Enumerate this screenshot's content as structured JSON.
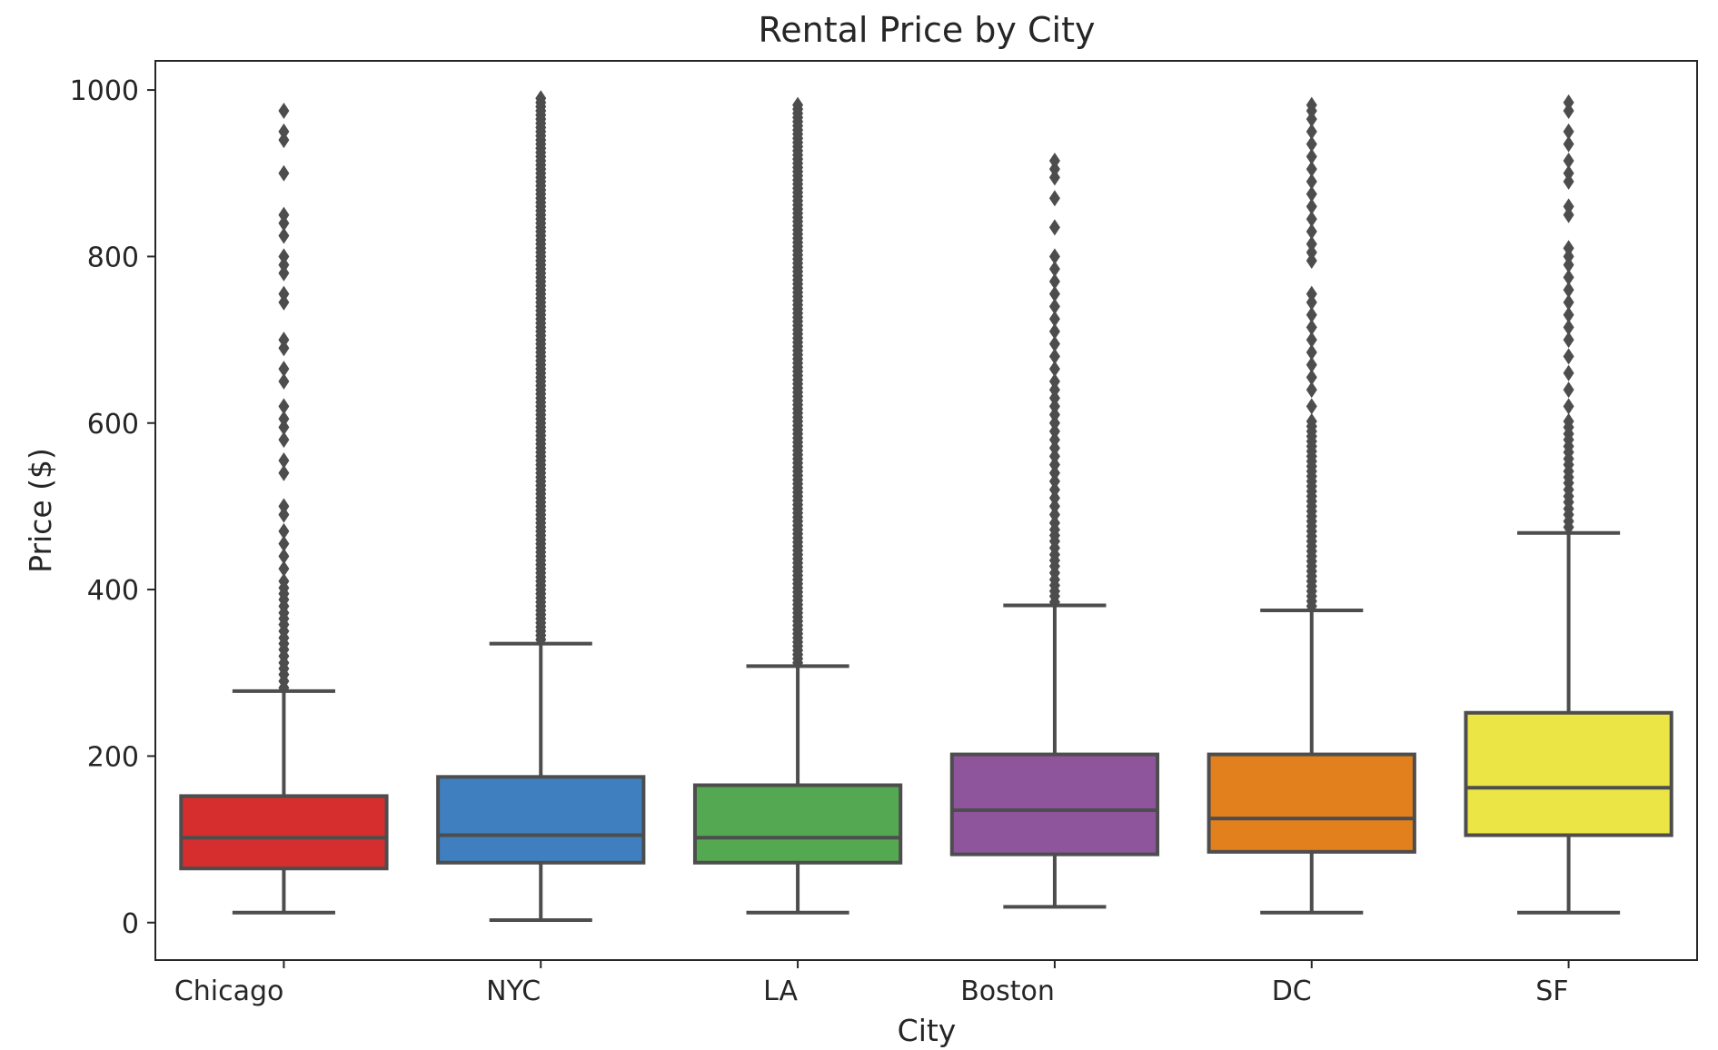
{
  "chart_data": {
    "type": "box",
    "title": "Rental Price by City",
    "xlabel": "City",
    "ylabel": "Price ($)",
    "categories": [
      "Chicago",
      "NYC",
      "LA",
      "Boston",
      "DC",
      "SF"
    ],
    "ylim": [
      -45,
      1035
    ],
    "yticks": [
      0,
      200,
      400,
      600,
      800,
      1000
    ],
    "grid": false,
    "series": [
      {
        "category": "Chicago",
        "color": "#d62e2e",
        "whisker_low": 12,
        "q1": 65,
        "median": 102,
        "q3": 152,
        "whisker_high": 278,
        "outliers": [
          282,
          290,
          298,
          305,
          312,
          320,
          328,
          335,
          342,
          350,
          358,
          365,
          372,
          380,
          388,
          395,
          402,
          410,
          425,
          440,
          455,
          470,
          490,
          500,
          540,
          555,
          580,
          595,
          605,
          620,
          650,
          665,
          690,
          700,
          745,
          755,
          780,
          790,
          800,
          825,
          840,
          850,
          900,
          940,
          950,
          975
        ]
      },
      {
        "category": "NYC",
        "color": "#3f7fbf",
        "whisker_low": 3,
        "q1": 72,
        "median": 105,
        "q3": 175,
        "whisker_high": 335,
        "outliers": [
          340,
          345,
          350,
          355,
          360,
          365,
          370,
          375,
          380,
          385,
          390,
          395,
          400,
          405,
          410,
          415,
          420,
          425,
          430,
          435,
          440,
          445,
          450,
          455,
          460,
          465,
          470,
          475,
          480,
          485,
          490,
          495,
          500,
          505,
          510,
          515,
          520,
          525,
          530,
          535,
          540,
          545,
          550,
          555,
          560,
          565,
          570,
          575,
          580,
          585,
          590,
          595,
          600,
          605,
          610,
          615,
          620,
          625,
          630,
          635,
          640,
          645,
          650,
          655,
          660,
          665,
          670,
          675,
          680,
          685,
          690,
          695,
          700,
          705,
          710,
          715,
          720,
          725,
          730,
          735,
          740,
          745,
          750,
          755,
          760,
          765,
          770,
          775,
          780,
          785,
          790,
          795,
          800,
          805,
          810,
          815,
          820,
          825,
          830,
          835,
          840,
          845,
          850,
          855,
          860,
          865,
          870,
          875,
          880,
          885,
          890,
          895,
          900,
          905,
          910,
          915,
          920,
          925,
          930,
          935,
          940,
          945,
          950,
          955,
          960,
          965,
          970,
          975,
          980,
          985,
          990
        ]
      },
      {
        "category": "LA",
        "color": "#55a852",
        "whisker_low": 12,
        "q1": 72,
        "median": 102,
        "q3": 165,
        "whisker_high": 308,
        "outliers": [
          312,
          317,
          322,
          327,
          332,
          337,
          342,
          347,
          352,
          357,
          362,
          367,
          372,
          377,
          382,
          387,
          392,
          397,
          402,
          407,
          412,
          417,
          422,
          427,
          432,
          437,
          442,
          447,
          452,
          457,
          462,
          467,
          472,
          477,
          482,
          487,
          492,
          497,
          502,
          507,
          512,
          517,
          522,
          527,
          532,
          537,
          542,
          547,
          552,
          557,
          562,
          567,
          572,
          577,
          582,
          587,
          592,
          597,
          602,
          607,
          612,
          617,
          622,
          627,
          632,
          637,
          642,
          647,
          652,
          657,
          662,
          667,
          672,
          677,
          682,
          687,
          692,
          697,
          702,
          707,
          712,
          717,
          722,
          727,
          732,
          737,
          742,
          747,
          752,
          757,
          762,
          767,
          772,
          777,
          782,
          787,
          792,
          797,
          802,
          807,
          812,
          817,
          822,
          827,
          832,
          837,
          842,
          847,
          852,
          857,
          862,
          867,
          872,
          877,
          882,
          887,
          892,
          897,
          902,
          907,
          912,
          917,
          922,
          927,
          932,
          937,
          942,
          947,
          952,
          957,
          962,
          967,
          972,
          977,
          982
        ]
      },
      {
        "category": "Boston",
        "color": "#8e559c",
        "whisker_low": 19,
        "q1": 82,
        "median": 135,
        "q3": 202,
        "whisker_high": 381,
        "outliers": [
          385,
          392,
          398,
          405,
          412,
          420,
          428,
          435,
          442,
          450,
          458,
          465,
          472,
          480,
          490,
          500,
          510,
          520,
          530,
          540,
          550,
          560,
          570,
          580,
          590,
          600,
          610,
          620,
          630,
          640,
          650,
          665,
          680,
          695,
          710,
          725,
          740,
          755,
          770,
          785,
          800,
          835,
          870,
          895,
          905,
          915
        ]
      },
      {
        "category": "DC",
        "color": "#e3801e",
        "whisker_low": 12,
        "q1": 85,
        "median": 125,
        "q3": 202,
        "whisker_high": 375,
        "outliers": [
          380,
          386,
          392,
          398,
          404,
          410,
          416,
          422,
          428,
          434,
          440,
          446,
          452,
          458,
          464,
          470,
          476,
          482,
          488,
          494,
          500,
          506,
          512,
          518,
          524,
          530,
          536,
          542,
          548,
          554,
          560,
          566,
          572,
          578,
          584,
          590,
          596,
          602,
          620,
          640,
          655,
          670,
          685,
          700,
          715,
          730,
          745,
          755,
          795,
          805,
          815,
          830,
          845,
          860,
          875,
          890,
          905,
          920,
          935,
          950,
          965,
          975,
          982
        ]
      },
      {
        "category": "SF",
        "color": "#ebe545",
        "whisker_low": 12,
        "q1": 105,
        "median": 162,
        "q3": 252,
        "whisker_high": 468,
        "outliers": [
          475,
          482,
          490,
          497,
          505,
          512,
          520,
          528,
          535,
          542,
          550,
          557,
          565,
          572,
          580,
          587,
          595,
          602,
          620,
          640,
          660,
          680,
          700,
          715,
          730,
          745,
          760,
          775,
          790,
          800,
          810,
          850,
          860,
          890,
          900,
          915,
          935,
          950,
          975,
          985
        ]
      }
    ]
  }
}
